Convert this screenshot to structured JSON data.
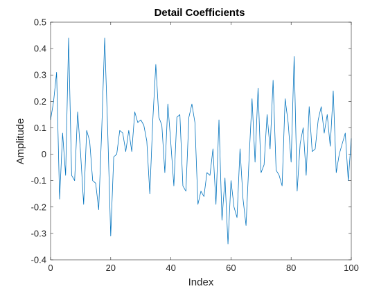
{
  "chart_data": {
    "type": "line",
    "title": "Detail Coefficients",
    "xlabel": "Index",
    "ylabel": "Amplitude",
    "xlim": [
      0,
      100
    ],
    "ylim": [
      -0.4,
      0.5
    ],
    "xticks": [
      0,
      20,
      40,
      60,
      80,
      100
    ],
    "yticks": [
      -0.4,
      -0.3,
      -0.2,
      -0.1,
      0,
      0.1,
      0.2,
      0.3,
      0.4,
      0.5
    ],
    "xtick_labels": [
      "0",
      "20",
      "40",
      "60",
      "80",
      "100"
    ],
    "ytick_labels": [
      "-0.4",
      "-0.3",
      "-0.2",
      "-0.1",
      "0",
      "0.1",
      "0.2",
      "0.3",
      "0.4",
      "0.5"
    ],
    "grid": false,
    "line_color": "#0072bd",
    "series": [
      {
        "x": [
          0,
          1,
          2,
          3,
          4,
          5,
          6,
          7,
          8,
          9,
          10,
          11,
          12,
          13,
          14,
          15,
          16,
          17,
          18,
          19,
          20,
          21,
          22,
          23,
          24,
          25,
          26,
          27,
          28,
          29,
          30,
          31,
          32,
          33,
          34,
          35,
          36,
          37,
          38,
          39,
          40,
          41,
          42,
          43,
          44,
          45,
          46,
          47,
          48,
          49,
          50,
          51,
          52,
          53,
          54,
          55,
          56,
          57,
          58,
          59,
          60,
          61,
          62,
          63,
          64,
          65,
          66,
          67,
          68,
          69,
          70,
          71,
          72,
          73,
          74,
          75,
          76,
          77,
          78,
          79,
          80,
          81,
          82,
          83,
          84,
          85,
          86,
          87,
          88,
          89,
          90,
          91,
          92,
          93,
          94,
          95,
          96,
          97,
          98,
          99,
          100
        ],
        "values": [
          0.13,
          0.2,
          0.31,
          -0.17,
          0.08,
          -0.08,
          0.44,
          -0.08,
          -0.1,
          0.16,
          0.0,
          -0.19,
          0.09,
          0.05,
          -0.1,
          -0.11,
          -0.21,
          0.09,
          0.44,
          0.09,
          -0.31,
          -0.01,
          0.0,
          0.09,
          0.08,
          0.01,
          0.09,
          0.01,
          0.16,
          0.12,
          0.13,
          0.11,
          0.05,
          -0.15,
          0.13,
          0.34,
          0.14,
          0.11,
          -0.07,
          0.19,
          0.04,
          -0.12,
          0.14,
          0.15,
          -0.12,
          -0.14,
          0.14,
          0.19,
          0.12,
          -0.19,
          -0.14,
          -0.16,
          -0.07,
          -0.08,
          0.02,
          -0.19,
          0.13,
          -0.25,
          -0.09,
          -0.34,
          -0.1,
          -0.2,
          -0.24,
          0.02,
          -0.17,
          -0.27,
          -0.02,
          0.21,
          -0.03,
          0.25,
          -0.07,
          -0.04,
          0.15,
          0.02,
          0.28,
          -0.06,
          -0.08,
          -0.12,
          0.21,
          0.12,
          -0.03,
          0.37,
          -0.14,
          0.04,
          0.1,
          -0.08,
          0.18,
          0.01,
          0.02,
          0.13,
          0.18,
          0.08,
          0.15,
          0.03,
          0.24,
          -0.07,
          0.0,
          0.04,
          0.08,
          -0.1,
          0.06
        ]
      }
    ]
  }
}
